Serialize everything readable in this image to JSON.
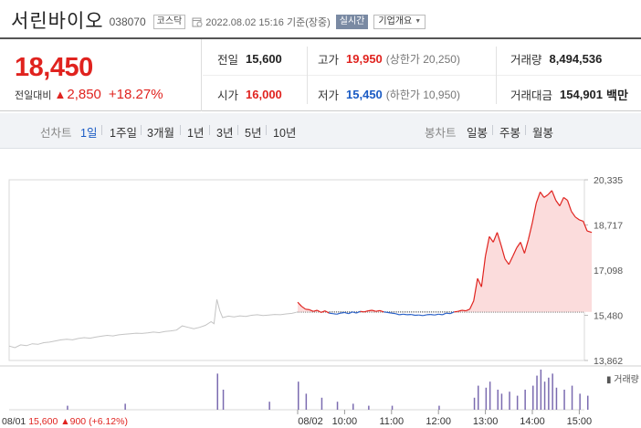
{
  "header": {
    "name": "서린바이오",
    "code": "038070",
    "market": "코스닥",
    "datetime": "2022.08.02 15:16",
    "basis": "기준(장중)",
    "live_label": "실시간",
    "company_button": "기업개요"
  },
  "quote": {
    "price": "18,450",
    "change_label": "전일대비",
    "change": "2,850",
    "change_pct": "+18.27%",
    "stats": {
      "prev_close_label": "전일",
      "prev_close": "15,600",
      "high_label": "고가",
      "high": "19,950",
      "upper_limit_label": "(상한가",
      "upper_limit": "20,250)",
      "volume_label": "거래량",
      "volume": "8,494,536",
      "open_label": "시가",
      "open": "16,000",
      "low_label": "저가",
      "low": "15,450",
      "lower_limit_label": "(하한가",
      "lower_limit": "10,950)",
      "turnover_label": "거래대금",
      "turnover": "154,901",
      "turnover_unit": "백만"
    }
  },
  "tabs": {
    "line_chart_label": "선차트",
    "periods": [
      "1일",
      "1주일",
      "3개월",
      "1년",
      "3년",
      "5년",
      "10년"
    ],
    "candle_chart_label": "봉차트",
    "candles": [
      "일봉",
      "주봉",
      "월봉"
    ]
  },
  "chart_data": {
    "type": "line",
    "title": "",
    "y_ticks": [
      "20,335",
      "18,717",
      "17,098",
      "15,480",
      "13,862"
    ],
    "ylim": [
      13862,
      20335
    ],
    "reference_line": 15600,
    "x_ticks": [
      "08/01",
      "08/02",
      "10:00",
      "11:00",
      "12:00",
      "13:00",
      "14:00",
      "15:00"
    ],
    "prev_day_caption": "08/01 15,600 ▲900 (+6.12%)",
    "volume_label": "거래량",
    "colors": {
      "prev_day": "#c4c4c4",
      "up": "#e0231f",
      "down": "#2b62c8",
      "fill_up": "#fbdcdc",
      "volume": "#7b6bb0"
    },
    "prev_day_series": [
      [
        0,
        14380
      ],
      [
        0.02,
        14320
      ],
      [
        0.04,
        14420
      ],
      [
        0.06,
        14390
      ],
      [
        0.08,
        14460
      ],
      [
        0.1,
        14440
      ],
      [
        0.12,
        14500
      ],
      [
        0.14,
        14520
      ],
      [
        0.16,
        14560
      ],
      [
        0.18,
        14600
      ],
      [
        0.2,
        14620
      ],
      [
        0.22,
        14600
      ],
      [
        0.24,
        14650
      ],
      [
        0.26,
        14680
      ],
      [
        0.28,
        14660
      ],
      [
        0.3,
        14700
      ],
      [
        0.32,
        14730
      ],
      [
        0.34,
        14760
      ],
      [
        0.36,
        14740
      ],
      [
        0.38,
        14780
      ],
      [
        0.4,
        14800
      ],
      [
        0.42,
        14820
      ],
      [
        0.44,
        14840
      ],
      [
        0.46,
        14830
      ],
      [
        0.48,
        14850
      ],
      [
        0.5,
        14880
      ],
      [
        0.52,
        14860
      ],
      [
        0.54,
        14900
      ],
      [
        0.56,
        14920
      ],
      [
        0.58,
        14950
      ],
      [
        0.6,
        15100
      ],
      [
        0.62,
        15050
      ],
      [
        0.64,
        15000
      ],
      [
        0.66,
        15050
      ],
      [
        0.68,
        15120
      ],
      [
        0.7,
        15250
      ],
      [
        0.71,
        15180
      ],
      [
        0.72,
        16050
      ],
      [
        0.73,
        15650
      ],
      [
        0.74,
        15400
      ],
      [
        0.76,
        15450
      ],
      [
        0.78,
        15420
      ],
      [
        0.8,
        15460
      ],
      [
        0.82,
        15440
      ],
      [
        0.84,
        15480
      ],
      [
        0.86,
        15500
      ],
      [
        0.88,
        15470
      ],
      [
        0.9,
        15490
      ],
      [
        0.92,
        15510
      ],
      [
        0.94,
        15500
      ],
      [
        0.96,
        15530
      ],
      [
        0.98,
        15550
      ],
      [
        1,
        15600
      ]
    ],
    "today_series": [
      [
        "09:00",
        15950
      ],
      [
        "09:05",
        15800
      ],
      [
        "09:10",
        15700
      ],
      [
        "09:15",
        15680
      ],
      [
        "09:20",
        15620
      ],
      [
        "09:25",
        15660
      ],
      [
        "09:30",
        15580
      ],
      [
        "09:35",
        15640
      ],
      [
        "09:40",
        15560
      ],
      [
        "09:45",
        15540
      ],
      [
        "09:50",
        15520
      ],
      [
        "09:55",
        15560
      ],
      [
        "10:00",
        15580
      ],
      [
        "10:05",
        15540
      ],
      [
        "10:10",
        15600
      ],
      [
        "10:15",
        15560
      ],
      [
        "10:20",
        15620
      ],
      [
        "10:25",
        15600
      ],
      [
        "10:30",
        15640
      ],
      [
        "10:35",
        15660
      ],
      [
        "10:40",
        15620
      ],
      [
        "10:45",
        15650
      ],
      [
        "10:50",
        15600
      ],
      [
        "10:55",
        15580
      ],
      [
        "11:00",
        15560
      ],
      [
        "11:05",
        15540
      ],
      [
        "11:10",
        15500
      ],
      [
        "11:15",
        15520
      ],
      [
        "11:20",
        15500
      ],
      [
        "11:25",
        15510
      ],
      [
        "11:30",
        15480
      ],
      [
        "11:35",
        15490
      ],
      [
        "11:40",
        15470
      ],
      [
        "11:45",
        15500
      ],
      [
        "11:50",
        15510
      ],
      [
        "11:55",
        15490
      ],
      [
        "12:00",
        15520
      ],
      [
        "12:05",
        15500
      ],
      [
        "12:10",
        15560
      ],
      [
        "12:15",
        15540
      ],
      [
        "12:20",
        15600
      ],
      [
        "12:25",
        15620
      ],
      [
        "12:30",
        15660
      ],
      [
        "12:35",
        15640
      ],
      [
        "12:40",
        15700
      ],
      [
        "12:45",
        16000
      ],
      [
        "12:50",
        16800
      ],
      [
        "12:55",
        16500
      ],
      [
        "13:00",
        17600
      ],
      [
        "13:05",
        18300
      ],
      [
        "13:10",
        18100
      ],
      [
        "13:15",
        18450
      ],
      [
        "13:20",
        18000
      ],
      [
        "13:25",
        17500
      ],
      [
        "13:30",
        17300
      ],
      [
        "13:35",
        17600
      ],
      [
        "13:40",
        17900
      ],
      [
        "13:45",
        18100
      ],
      [
        "13:50",
        17700
      ],
      [
        "13:55",
        18200
      ],
      [
        "14:00",
        18800
      ],
      [
        "14:05",
        19500
      ],
      [
        "14:10",
        19900
      ],
      [
        "14:15",
        19700
      ],
      [
        "14:20",
        19800
      ],
      [
        "14:25",
        19950
      ],
      [
        "14:30",
        19600
      ],
      [
        "14:35",
        19400
      ],
      [
        "14:40",
        19700
      ],
      [
        "14:45",
        19600
      ],
      [
        "14:50",
        19200
      ],
      [
        "14:55",
        19000
      ],
      [
        "15:00",
        18900
      ],
      [
        "15:05",
        18850
      ],
      [
        "15:10",
        18500
      ],
      [
        "15:16",
        18450
      ]
    ],
    "volume_bars": [
      [
        "prev",
        0.2,
        0.1
      ],
      [
        "prev",
        0.4,
        0.15
      ],
      [
        "prev",
        0.72,
        0.9
      ],
      [
        "prev",
        0.74,
        0.5
      ],
      [
        "prev",
        0.9,
        0.2
      ],
      [
        "09:00",
        0.7
      ],
      [
        "09:10",
        0.4
      ],
      [
        "09:30",
        0.3
      ],
      [
        "09:50",
        0.2
      ],
      [
        "10:10",
        0.15
      ],
      [
        "10:30",
        0.1
      ],
      [
        "11:00",
        0.1
      ],
      [
        "12:00",
        0.1
      ],
      [
        "12:45",
        0.3
      ],
      [
        "12:50",
        0.6
      ],
      [
        "13:00",
        0.55
      ],
      [
        "13:05",
        0.7
      ],
      [
        "13:15",
        0.5
      ],
      [
        "13:20",
        0.4
      ],
      [
        "13:30",
        0.45
      ],
      [
        "13:40",
        0.35
      ],
      [
        "13:50",
        0.5
      ],
      [
        "14:00",
        0.6
      ],
      [
        "14:05",
        0.85
      ],
      [
        "14:10",
        1.0
      ],
      [
        "14:15",
        0.7
      ],
      [
        "14:20",
        0.8
      ],
      [
        "14:25",
        0.9
      ],
      [
        "14:30",
        0.55
      ],
      [
        "14:40",
        0.5
      ],
      [
        "14:50",
        0.6
      ],
      [
        "15:00",
        0.4
      ],
      [
        "15:10",
        0.35
      ]
    ]
  }
}
